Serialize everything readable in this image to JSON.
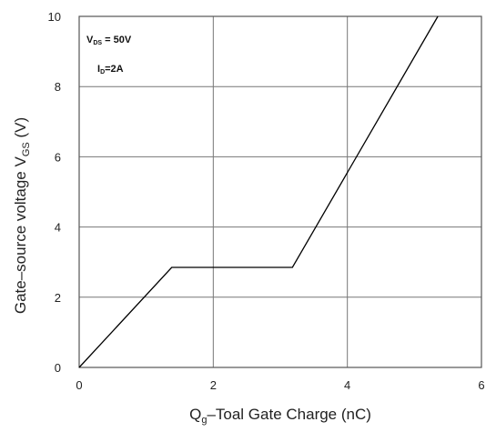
{
  "chart_data": {
    "type": "line",
    "x_axis": {
      "label_main": "Q",
      "label_sub": "g",
      "label_rest": "–Toal Gate Charge  (nC)",
      "range": [
        0,
        6
      ],
      "ticks": [
        0,
        2,
        4,
        6
      ]
    },
    "y_axis": {
      "label_main": "Gate–source voltage V",
      "label_sub": "GS",
      "label_rest": " (V)",
      "range": [
        0,
        10
      ],
      "ticks": [
        0,
        2,
        4,
        6,
        8,
        10
      ]
    },
    "grid": true,
    "annotations": [
      {
        "main": "V",
        "sub": "DS",
        "rest": " = 50V"
      },
      {
        "main": "I",
        "sub": "D",
        "rest": "=2A"
      }
    ],
    "series": [
      {
        "x": [
          0,
          1.38,
          3.18,
          5.35
        ],
        "y": [
          0,
          2.85,
          2.85,
          10
        ]
      }
    ],
    "line_color": "#000000",
    "grid_color": "#777777"
  }
}
